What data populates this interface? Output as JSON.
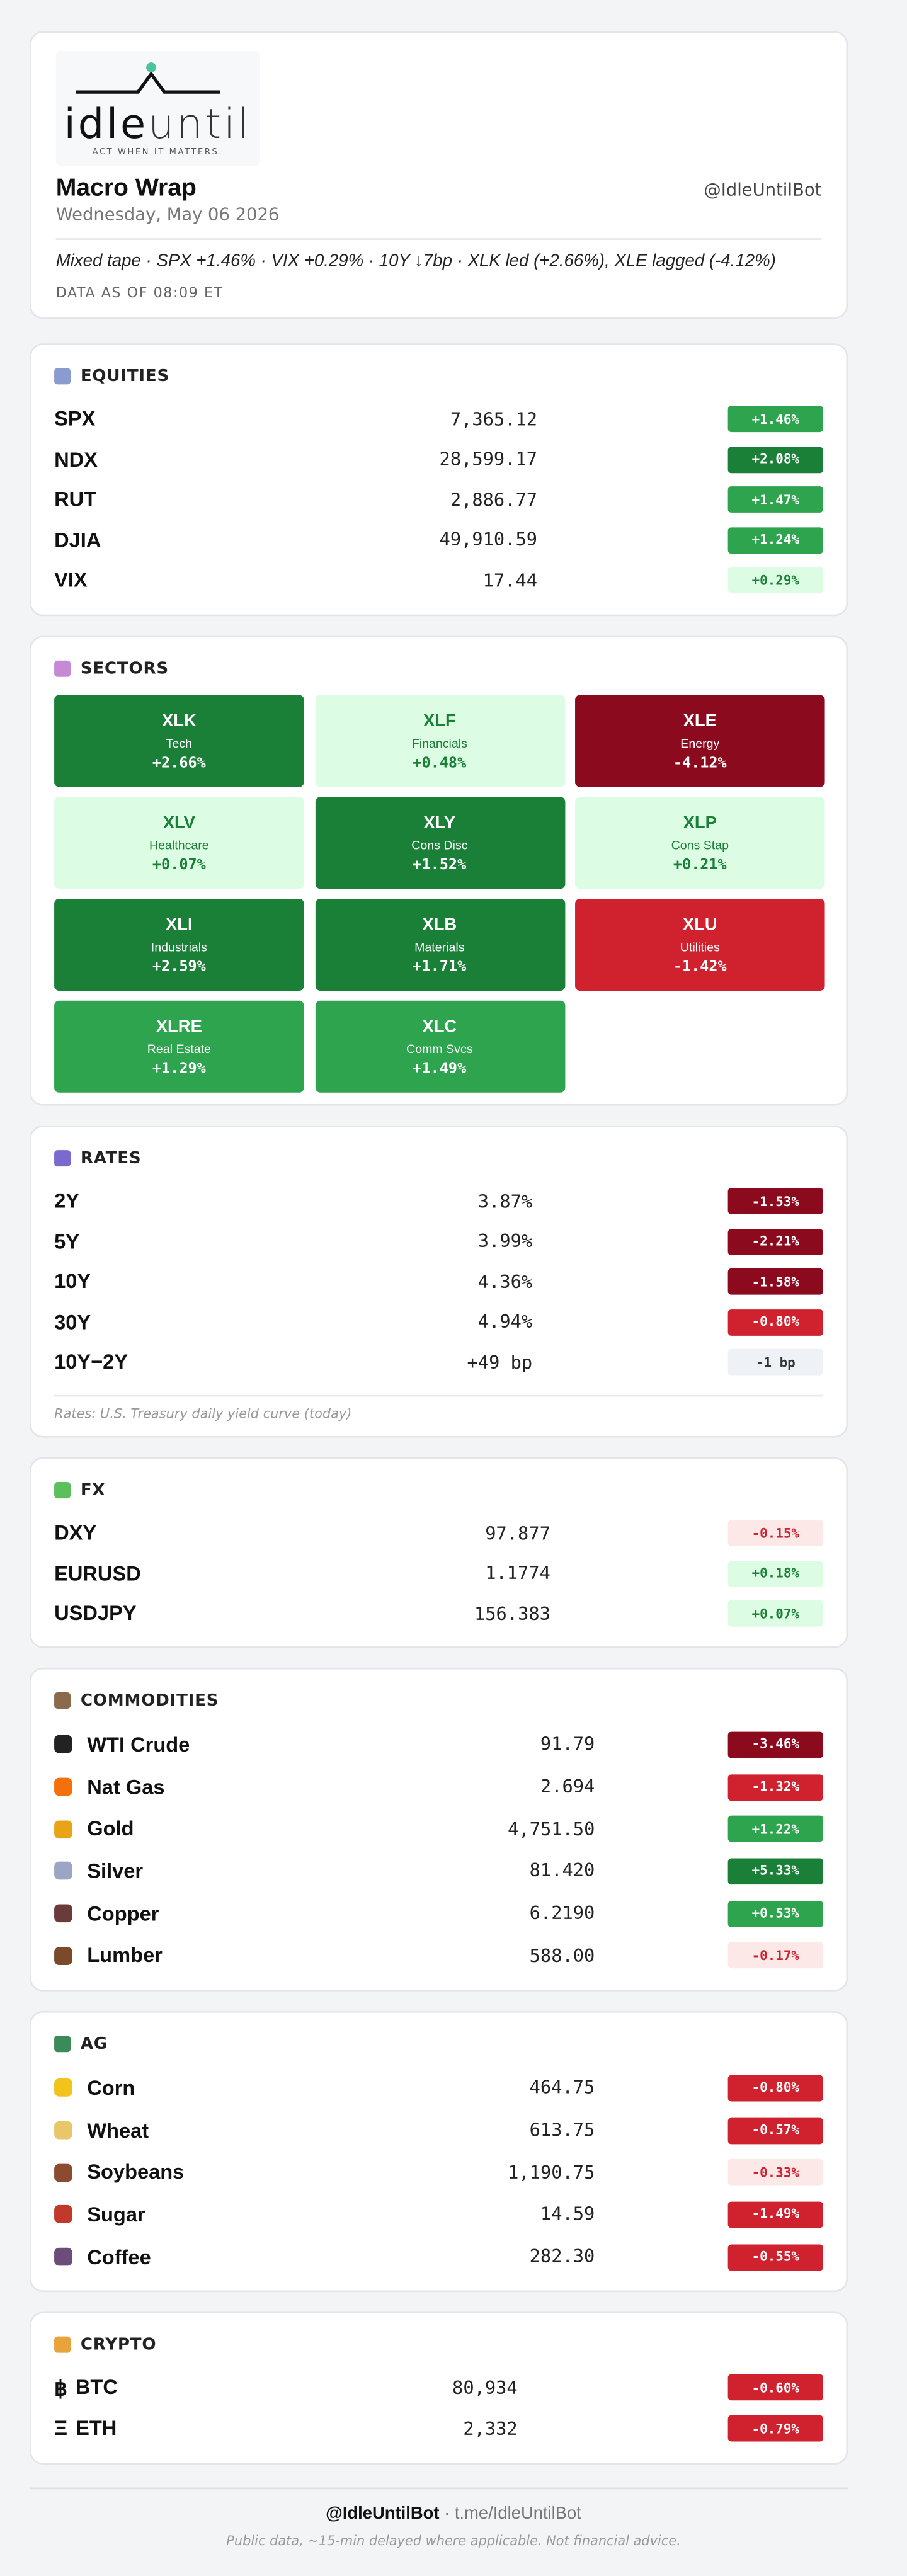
{
  "header": {
    "logo": {
      "wordmark_dark": "idle",
      "wordmark_light": "until",
      "tagline": "ACT WHEN IT MATTERS."
    },
    "title": "Macro Wrap",
    "date": "Wednesday, May 06 2026",
    "handle": "@IdleUntilBot",
    "summary": "Mixed tape · SPX +1.46% · VIX +0.29% · 10Y ↓7bp · XLK led (+2.66%), XLE lagged (-4.12%)",
    "as_of": "DATA AS OF 08:09 ET"
  },
  "sections": [
    {
      "title": "EQUITIES",
      "icon_color": "#8a9bd0",
      "rows": [
        {
          "name": "SPX",
          "value": "7,365.12",
          "change": "+1.46%",
          "tone": "up"
        },
        {
          "name": "NDX",
          "value": "28,599.17",
          "change": "+2.08%",
          "tone": "up-strong"
        },
        {
          "name": "RUT",
          "value": "2,886.77",
          "change": "+1.47%",
          "tone": "up"
        },
        {
          "name": "DJIA",
          "value": "49,910.59",
          "change": "+1.24%",
          "tone": "up"
        },
        {
          "name": "VIX",
          "value": "17.44",
          "change": "+0.29%",
          "tone": "up-light"
        }
      ]
    },
    {
      "title": "SECTORS",
      "icon_color": "#c58ad6",
      "tiles": [
        {
          "ticker": "XLK",
          "label": "Tech",
          "change": "+2.66%",
          "tone": "up-strong"
        },
        {
          "ticker": "XLF",
          "label": "Financials",
          "change": "+0.48%",
          "tone": "up-light"
        },
        {
          "ticker": "XLE",
          "label": "Energy",
          "change": "-4.12%",
          "tone": "down-strong"
        },
        {
          "ticker": "XLV",
          "label": "Healthcare",
          "change": "+0.07%",
          "tone": "up-light"
        },
        {
          "ticker": "XLY",
          "label": "Cons Disc",
          "change": "+1.52%",
          "tone": "up-strong"
        },
        {
          "ticker": "XLP",
          "label": "Cons Stap",
          "change": "+0.21%",
          "tone": "up-light"
        },
        {
          "ticker": "XLI",
          "label": "Industrials",
          "change": "+2.59%",
          "tone": "up-strong"
        },
        {
          "ticker": "XLB",
          "label": "Materials",
          "change": "+1.71%",
          "tone": "up-strong"
        },
        {
          "ticker": "XLU",
          "label": "Utilities",
          "change": "-1.42%",
          "tone": "down"
        },
        {
          "ticker": "XLRE",
          "label": "Real Estate",
          "change": "+1.29%",
          "tone": "up"
        },
        {
          "ticker": "XLC",
          "label": "Comm Svcs",
          "change": "+1.49%",
          "tone": "up"
        }
      ]
    },
    {
      "title": "RATES",
      "icon_color": "#7a6ad0",
      "rows": [
        {
          "name": "2Y",
          "value": "3.87%",
          "change": "-1.53%",
          "tone": "down-strong"
        },
        {
          "name": "5Y",
          "value": "3.99%",
          "change": "-2.21%",
          "tone": "down-strong"
        },
        {
          "name": "10Y",
          "value": "4.36%",
          "change": "-1.58%",
          "tone": "down-strong"
        },
        {
          "name": "30Y",
          "value": "4.94%",
          "change": "-0.80%",
          "tone": "down"
        },
        {
          "name": "10Y−2Y",
          "value": "+49 bp",
          "change": "-1 bp",
          "tone": "flat"
        }
      ],
      "note": "Rates: U.S. Treasury daily yield curve (today)"
    },
    {
      "title": "FX",
      "icon_color": "#5bbf5b",
      "rows": [
        {
          "name": "DXY",
          "value": "97.877",
          "change": "-0.15%",
          "tone": "down-light"
        },
        {
          "name": "EURUSD",
          "value": "1.1774",
          "change": "+0.18%",
          "tone": "up-light"
        },
        {
          "name": "USDJPY",
          "value": "156.383",
          "change": "+0.07%",
          "tone": "up-light"
        }
      ]
    },
    {
      "title": "COMMODITIES",
      "icon_color": "#8a6a4a",
      "rows": [
        {
          "name": "WTI Crude",
          "icon_color": "#222222",
          "value": "91.79",
          "change": "-3.46%",
          "tone": "down-strong"
        },
        {
          "name": "Nat Gas",
          "icon_color": "#f4700b",
          "value": "2.694",
          "change": "-1.32%",
          "tone": "down"
        },
        {
          "name": "Gold",
          "icon_color": "#e8a317",
          "value": "4,751.50",
          "change": "+1.22%",
          "tone": "up"
        },
        {
          "name": "Silver",
          "icon_color": "#9aa6c3",
          "value": "81.420",
          "change": "+5.33%",
          "tone": "up-strong"
        },
        {
          "name": "Copper",
          "icon_color": "#6b3a3a",
          "value": "6.2190",
          "change": "+0.53%",
          "tone": "up"
        },
        {
          "name": "Lumber",
          "icon_color": "#7a4a2a",
          "value": "588.00",
          "change": "-0.17%",
          "tone": "down-light"
        }
      ]
    },
    {
      "title": "AG",
      "icon_color": "#3a8a5a",
      "rows": [
        {
          "name": "Corn",
          "icon_color": "#f2c31b",
          "value": "464.75",
          "change": "-0.80%",
          "tone": "down"
        },
        {
          "name": "Wheat",
          "icon_color": "#e8c66a",
          "value": "613.75",
          "change": "-0.57%",
          "tone": "down"
        },
        {
          "name": "Soybeans",
          "icon_color": "#8a4b2f",
          "value": "1,190.75",
          "change": "-0.33%",
          "tone": "down-light"
        },
        {
          "name": "Sugar",
          "icon_color": "#c0392b",
          "value": "14.59",
          "change": "-1.49%",
          "tone": "down"
        },
        {
          "name": "Coffee",
          "icon_color": "#6b4c7a",
          "value": "282.30",
          "change": "-0.55%",
          "tone": "down"
        }
      ]
    },
    {
      "title": "CRYPTO",
      "icon_color": "#e8a33a",
      "rows": [
        {
          "symbol": "฿",
          "name": "BTC",
          "value": "80,934",
          "change": "-0.60%",
          "tone": "down"
        },
        {
          "symbol": "Ξ",
          "name": "ETH",
          "value": "2,332",
          "change": "-0.79%",
          "tone": "down"
        }
      ]
    }
  ],
  "footer": {
    "handle": "@IdleUntilBot",
    "link": "· t.me/IdleUntilBot",
    "disclaimer": "Public data, ~15-min delayed where applicable. Not financial advice."
  }
}
